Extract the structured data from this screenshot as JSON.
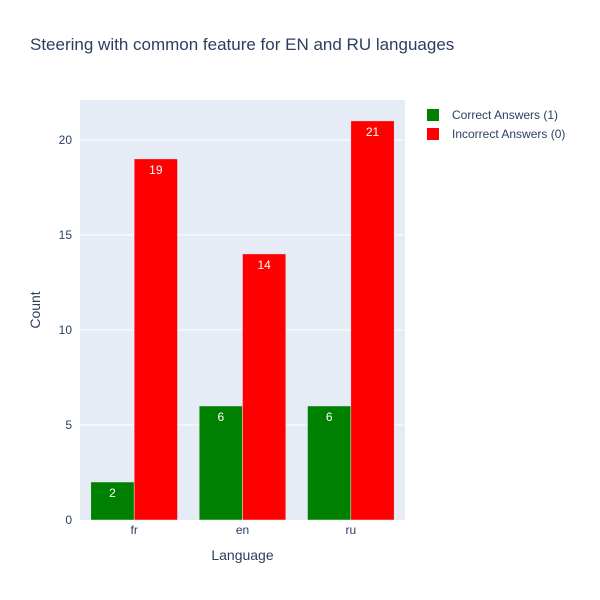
{
  "chart_data": {
    "type": "bar",
    "title": "Steering with common feature for EN and RU languages",
    "xlabel": "Language",
    "ylabel": "Count",
    "categories": [
      "fr",
      "en",
      "ru"
    ],
    "ylim": [
      0,
      22.1
    ],
    "yticks": [
      0,
      5,
      10,
      15,
      20
    ],
    "grid": true,
    "legend_position": "top-right",
    "series": [
      {
        "name": "Correct Answers (1)",
        "values": [
          2,
          6,
          6
        ],
        "color": "#008000"
      },
      {
        "name": "Incorrect Answers (0)",
        "values": [
          19,
          14,
          21
        ],
        "color": "#ff0000"
      }
    ],
    "plot_background": "#e5ecf6"
  }
}
